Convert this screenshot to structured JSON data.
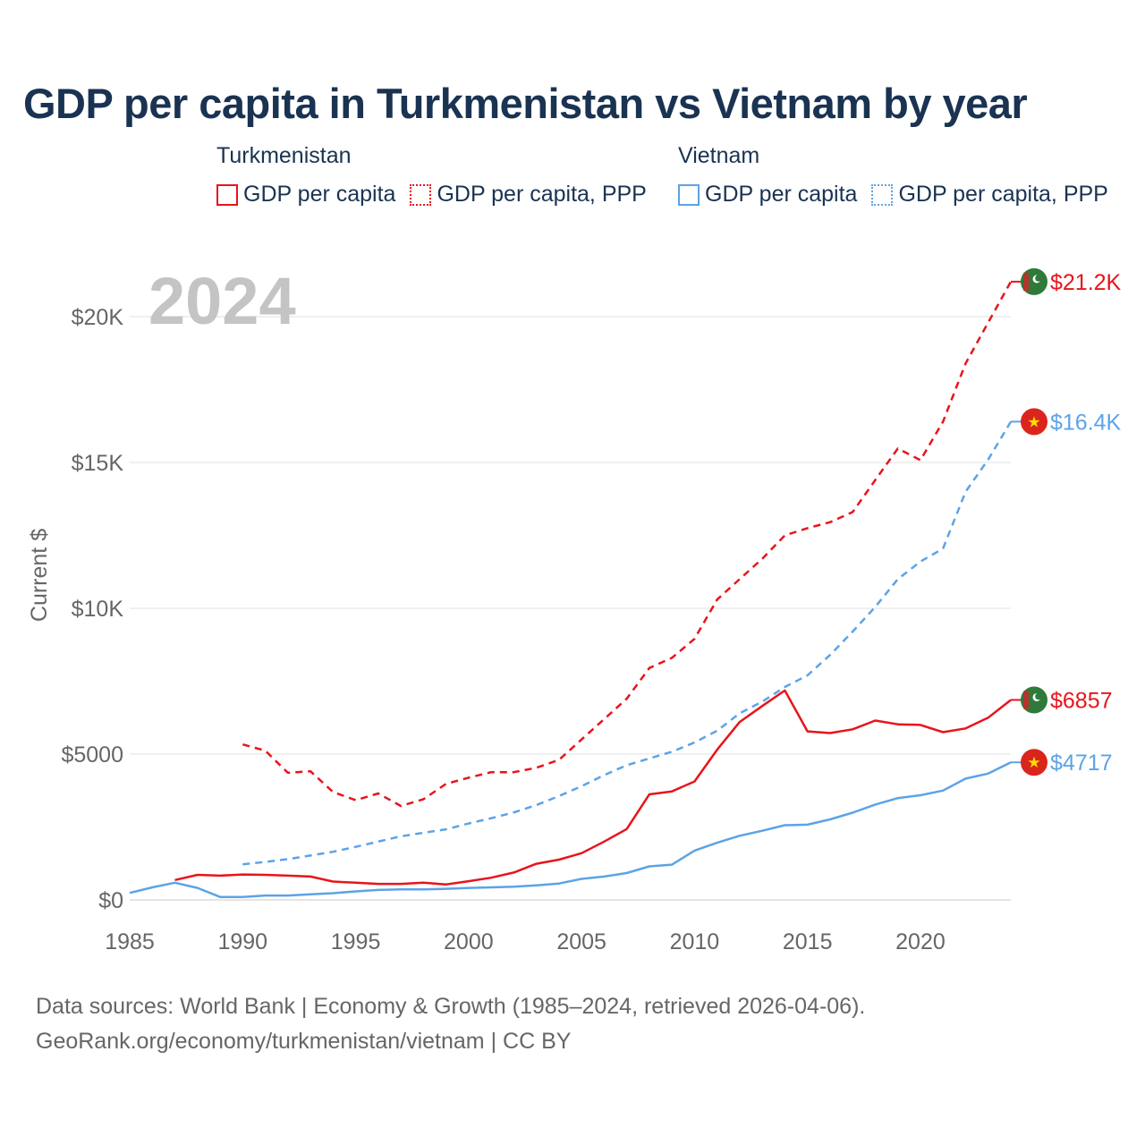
{
  "title": "GDP per capita in Turkmenistan vs Vietnam by year",
  "legend": {
    "groups": [
      {
        "country": "Turkmenistan",
        "color": "#e8141b",
        "items": [
          "GDP per capita",
          "GDP per capita, PPP"
        ]
      },
      {
        "country": "Vietnam",
        "color": "#5ca3e6",
        "items": [
          "GDP per capita",
          "GDP per capita, PPP"
        ]
      }
    ]
  },
  "footer": {
    "line1": "Data sources: World Bank | Economy & Growth (1985–2024, retrieved 2026-04-06).",
    "line2": "GeoRank.org/economy/turkmenistan/vietnam | CC BY"
  },
  "chart_data": {
    "type": "line",
    "year_label": "2024",
    "ylabel": "Current $",
    "xlim": [
      1985,
      2024
    ],
    "ylim": [
      0,
      21500
    ],
    "x_ticks": [
      1985,
      1990,
      1995,
      2000,
      2005,
      2010,
      2015,
      2020
    ],
    "y_ticks": [
      {
        "value": 0,
        "label": "$0"
      },
      {
        "value": 5000,
        "label": "$5000"
      },
      {
        "value": 10000,
        "label": "$10K"
      },
      {
        "value": 15000,
        "label": "$15K"
      },
      {
        "value": 20000,
        "label": "$20K"
      }
    ],
    "grid": true,
    "series": [
      {
        "name": "Turkmenistan GDP per capita, PPP",
        "country": "Turkmenistan",
        "color": "#e8141b",
        "style": "dashed",
        "start": 1990,
        "values": [
          5330,
          5120,
          4360,
          4410,
          3700,
          3420,
          3650,
          3220,
          3450,
          3980,
          4190,
          4380,
          4380,
          4530,
          4800,
          5500,
          6200,
          6900,
          7950,
          8300,
          8950,
          10300,
          11000,
          11700,
          12500,
          12750,
          12950,
          13300,
          14400,
          15480,
          15080,
          16400,
          18400,
          19800,
          21200
        ],
        "end_label": "$21.2K"
      },
      {
        "name": "Vietnam GDP per capita, PPP",
        "country": "Vietnam",
        "color": "#5ca3e6",
        "style": "dashed",
        "start": 1990,
        "values": [
          1220,
          1300,
          1400,
          1520,
          1650,
          1820,
          2000,
          2180,
          2300,
          2420,
          2620,
          2800,
          3000,
          3250,
          3560,
          3900,
          4280,
          4620,
          4850,
          5080,
          5400,
          5800,
          6400,
          6800,
          7300,
          7700,
          8400,
          9200,
          10050,
          11000,
          11600,
          12050,
          14000,
          15100,
          16400
        ],
        "end_label": "$16.4K"
      },
      {
        "name": "Turkmenistan GDP per capita",
        "country": "Turkmenistan",
        "color": "#e8141b",
        "style": "solid",
        "start": 1987,
        "values": [
          680,
          860,
          830,
          870,
          860,
          830,
          800,
          630,
          590,
          550,
          550,
          590,
          530,
          640,
          760,
          940,
          1240,
          1380,
          1600,
          2000,
          2430,
          3620,
          3720,
          4060,
          5150,
          6100,
          6650,
          7180,
          5780,
          5720,
          5850,
          6150,
          6020,
          6000,
          5750,
          5880,
          6250,
          6857
        ],
        "end_label": "$6857"
      },
      {
        "name": "Vietnam GDP per capita",
        "country": "Vietnam",
        "color": "#5ca3e6",
        "style": "solid",
        "start": 1985,
        "values": [
          240,
          430,
          590,
          410,
          100,
          100,
          150,
          150,
          190,
          230,
          290,
          340,
          360,
          360,
          380,
          410,
          430,
          450,
          500,
          560,
          720,
          800,
          920,
          1150,
          1210,
          1690,
          1960,
          2200,
          2370,
          2560,
          2580,
          2760,
          2990,
          3270,
          3490,
          3590,
          3750,
          4160,
          4330,
          4717
        ],
        "end_label": "$4717"
      }
    ]
  }
}
